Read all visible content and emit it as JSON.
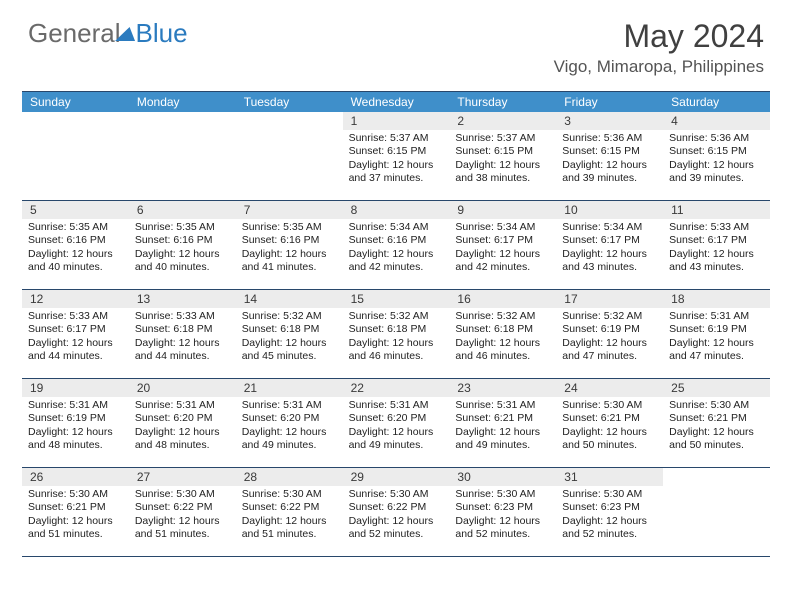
{
  "brand": {
    "part1": "General",
    "part2": "Blue"
  },
  "title": "May 2024",
  "location": "Vigo, Mimaropa, Philippines",
  "colors": {
    "header_bg": "#3f8fca",
    "border": "#28476b",
    "date_bg": "#ececec",
    "text": "#222222",
    "brand_blue": "#2b7bbf",
    "brand_gray": "#6a6a6a"
  },
  "day_names": [
    "Sunday",
    "Monday",
    "Tuesday",
    "Wednesday",
    "Thursday",
    "Friday",
    "Saturday"
  ],
  "weeks": [
    [
      {
        "date": "",
        "empty": true
      },
      {
        "date": "",
        "empty": true
      },
      {
        "date": "",
        "empty": true
      },
      {
        "date": "1",
        "sunrise": "5:37 AM",
        "sunset": "6:15 PM",
        "daylight": "12 hours and 37 minutes."
      },
      {
        "date": "2",
        "sunrise": "5:37 AM",
        "sunset": "6:15 PM",
        "daylight": "12 hours and 38 minutes."
      },
      {
        "date": "3",
        "sunrise": "5:36 AM",
        "sunset": "6:15 PM",
        "daylight": "12 hours and 39 minutes."
      },
      {
        "date": "4",
        "sunrise": "5:36 AM",
        "sunset": "6:15 PM",
        "daylight": "12 hours and 39 minutes."
      }
    ],
    [
      {
        "date": "5",
        "sunrise": "5:35 AM",
        "sunset": "6:16 PM",
        "daylight": "12 hours and 40 minutes."
      },
      {
        "date": "6",
        "sunrise": "5:35 AM",
        "sunset": "6:16 PM",
        "daylight": "12 hours and 40 minutes."
      },
      {
        "date": "7",
        "sunrise": "5:35 AM",
        "sunset": "6:16 PM",
        "daylight": "12 hours and 41 minutes."
      },
      {
        "date": "8",
        "sunrise": "5:34 AM",
        "sunset": "6:16 PM",
        "daylight": "12 hours and 42 minutes."
      },
      {
        "date": "9",
        "sunrise": "5:34 AM",
        "sunset": "6:17 PM",
        "daylight": "12 hours and 42 minutes."
      },
      {
        "date": "10",
        "sunrise": "5:34 AM",
        "sunset": "6:17 PM",
        "daylight": "12 hours and 43 minutes."
      },
      {
        "date": "11",
        "sunrise": "5:33 AM",
        "sunset": "6:17 PM",
        "daylight": "12 hours and 43 minutes."
      }
    ],
    [
      {
        "date": "12",
        "sunrise": "5:33 AM",
        "sunset": "6:17 PM",
        "daylight": "12 hours and 44 minutes."
      },
      {
        "date": "13",
        "sunrise": "5:33 AM",
        "sunset": "6:18 PM",
        "daylight": "12 hours and 44 minutes."
      },
      {
        "date": "14",
        "sunrise": "5:32 AM",
        "sunset": "6:18 PM",
        "daylight": "12 hours and 45 minutes."
      },
      {
        "date": "15",
        "sunrise": "5:32 AM",
        "sunset": "6:18 PM",
        "daylight": "12 hours and 46 minutes."
      },
      {
        "date": "16",
        "sunrise": "5:32 AM",
        "sunset": "6:18 PM",
        "daylight": "12 hours and 46 minutes."
      },
      {
        "date": "17",
        "sunrise": "5:32 AM",
        "sunset": "6:19 PM",
        "daylight": "12 hours and 47 minutes."
      },
      {
        "date": "18",
        "sunrise": "5:31 AM",
        "sunset": "6:19 PM",
        "daylight": "12 hours and 47 minutes."
      }
    ],
    [
      {
        "date": "19",
        "sunrise": "5:31 AM",
        "sunset": "6:19 PM",
        "daylight": "12 hours and 48 minutes."
      },
      {
        "date": "20",
        "sunrise": "5:31 AM",
        "sunset": "6:20 PM",
        "daylight": "12 hours and 48 minutes."
      },
      {
        "date": "21",
        "sunrise": "5:31 AM",
        "sunset": "6:20 PM",
        "daylight": "12 hours and 49 minutes."
      },
      {
        "date": "22",
        "sunrise": "5:31 AM",
        "sunset": "6:20 PM",
        "daylight": "12 hours and 49 minutes."
      },
      {
        "date": "23",
        "sunrise": "5:31 AM",
        "sunset": "6:21 PM",
        "daylight": "12 hours and 49 minutes."
      },
      {
        "date": "24",
        "sunrise": "5:30 AM",
        "sunset": "6:21 PM",
        "daylight": "12 hours and 50 minutes."
      },
      {
        "date": "25",
        "sunrise": "5:30 AM",
        "sunset": "6:21 PM",
        "daylight": "12 hours and 50 minutes."
      }
    ],
    [
      {
        "date": "26",
        "sunrise": "5:30 AM",
        "sunset": "6:21 PM",
        "daylight": "12 hours and 51 minutes."
      },
      {
        "date": "27",
        "sunrise": "5:30 AM",
        "sunset": "6:22 PM",
        "daylight": "12 hours and 51 minutes."
      },
      {
        "date": "28",
        "sunrise": "5:30 AM",
        "sunset": "6:22 PM",
        "daylight": "12 hours and 51 minutes."
      },
      {
        "date": "29",
        "sunrise": "5:30 AM",
        "sunset": "6:22 PM",
        "daylight": "12 hours and 52 minutes."
      },
      {
        "date": "30",
        "sunrise": "5:30 AM",
        "sunset": "6:23 PM",
        "daylight": "12 hours and 52 minutes."
      },
      {
        "date": "31",
        "sunrise": "5:30 AM",
        "sunset": "6:23 PM",
        "daylight": "12 hours and 52 minutes."
      },
      {
        "date": "",
        "empty": true
      }
    ]
  ]
}
